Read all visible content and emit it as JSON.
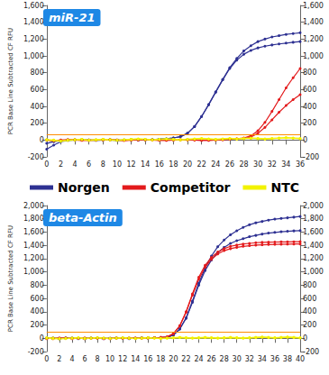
{
  "chart_data": [
    {
      "type": "line",
      "title": "miR-21",
      "y_label": "PCR Base Line Subtracted CF RFU",
      "x": [
        0,
        1,
        2,
        3,
        4,
        5,
        6,
        7,
        8,
        9,
        10,
        11,
        12,
        13,
        14,
        15,
        16,
        17,
        18,
        19,
        20,
        21,
        22,
        23,
        24,
        25,
        26,
        27,
        28,
        29,
        30,
        31,
        32,
        33,
        34,
        35,
        36
      ],
      "xlim": [
        0,
        36
      ],
      "xticks": [
        0,
        2,
        4,
        6,
        8,
        10,
        12,
        14,
        16,
        18,
        20,
        22,
        24,
        26,
        28,
        30,
        32,
        34,
        36
      ],
      "ylim": [
        -200,
        1600
      ],
      "yticks": [
        -200,
        0,
        200,
        400,
        600,
        800,
        1000,
        1200,
        1400,
        1600
      ],
      "threshold": 60,
      "grid": false,
      "legend": "bottom",
      "series": [
        {
          "name": "Norgen",
          "color": "#2e3192",
          "marker": "circle",
          "values": [
            -110,
            -60,
            -20,
            -5,
            0,
            5,
            0,
            -5,
            0,
            5,
            0,
            0,
            5,
            0,
            5,
            5,
            10,
            15,
            25,
            40,
            80,
            160,
            280,
            420,
            570,
            720,
            860,
            970,
            1060,
            1120,
            1170,
            1200,
            1225,
            1240,
            1255,
            1265,
            1275
          ]
        },
        {
          "name": "Norgen",
          "color": "#2e3192",
          "marker": "circle",
          "values": [
            -40,
            -20,
            -10,
            0,
            0,
            5,
            0,
            0,
            5,
            0,
            -5,
            0,
            5,
            0,
            0,
            5,
            10,
            15,
            25,
            40,
            80,
            160,
            280,
            420,
            570,
            715,
            850,
            950,
            1020,
            1065,
            1095,
            1115,
            1130,
            1142,
            1152,
            1162,
            1170
          ]
        },
        {
          "name": "Competitor",
          "color": "#e31a1c",
          "marker": "circle",
          "values": [
            0,
            -10,
            -5,
            0,
            5,
            0,
            -5,
            0,
            0,
            5,
            0,
            -5,
            0,
            0,
            5,
            0,
            0,
            -5,
            0,
            0,
            5,
            0,
            0,
            -5,
            0,
            5,
            10,
            15,
            25,
            50,
            110,
            210,
            340,
            480,
            620,
            740,
            850
          ]
        },
        {
          "name": "Competitor",
          "color": "#e31a1c",
          "marker": "circle",
          "values": [
            0,
            -5,
            0,
            5,
            0,
            -5,
            0,
            0,
            5,
            0,
            0,
            -5,
            0,
            5,
            0,
            0,
            -5,
            0,
            0,
            5,
            0,
            0,
            -5,
            0,
            0,
            5,
            10,
            15,
            20,
            35,
            80,
            150,
            240,
            330,
            410,
            480,
            540
          ]
        },
        {
          "name": "NTC",
          "color": "#f2f200",
          "marker": "circle",
          "values": [
            5,
            0,
            -10,
            0,
            5,
            10,
            0,
            5,
            10,
            5,
            0,
            5,
            10,
            15,
            10,
            5,
            10,
            15,
            10,
            5,
            10,
            15,
            20,
            15,
            10,
            15,
            20,
            15,
            20,
            25,
            20,
            15,
            20,
            25,
            30,
            25,
            20
          ]
        },
        {
          "name": "NTC",
          "color": "#f2f200",
          "marker": "circle",
          "values": [
            0,
            -5,
            -15,
            -5,
            0,
            5,
            -5,
            0,
            5,
            0,
            -5,
            0,
            5,
            10,
            5,
            0,
            5,
            10,
            5,
            0,
            5,
            10,
            15,
            10,
            5,
            10,
            15,
            10,
            15,
            20,
            15,
            10,
            15,
            20,
            25,
            20,
            15
          ]
        }
      ]
    },
    {
      "type": "line",
      "title": "beta-Actin",
      "y_label": "PCR Base Line Subtracted CF RFU",
      "x": [
        0,
        1,
        2,
        3,
        4,
        5,
        6,
        7,
        8,
        9,
        10,
        11,
        12,
        13,
        14,
        15,
        16,
        17,
        18,
        19,
        20,
        21,
        22,
        23,
        24,
        25,
        26,
        27,
        28,
        29,
        30,
        31,
        32,
        33,
        34,
        35,
        36,
        37,
        38,
        39,
        40
      ],
      "xlim": [
        0,
        40
      ],
      "xticks": [
        0,
        2,
        4,
        6,
        8,
        10,
        12,
        14,
        16,
        18,
        20,
        22,
        24,
        26,
        28,
        30,
        32,
        34,
        36,
        38,
        40
      ],
      "ylim": [
        -200,
        2000
      ],
      "yticks": [
        -200,
        0,
        200,
        400,
        600,
        800,
        1000,
        1200,
        1400,
        1600,
        1800,
        2000
      ],
      "threshold": 100,
      "grid": false,
      "series": [
        {
          "name": "Norgen",
          "color": "#2e3192",
          "marker": "circle",
          "values": [
            0,
            5,
            -5,
            0,
            5,
            0,
            -5,
            0,
            5,
            0,
            0,
            5,
            0,
            -5,
            0,
            5,
            5,
            10,
            10,
            15,
            50,
            140,
            310,
            560,
            830,
            1060,
            1240,
            1380,
            1480,
            1560,
            1620,
            1670,
            1710,
            1740,
            1760,
            1780,
            1795,
            1805,
            1815,
            1825,
            1835
          ]
        },
        {
          "name": "Norgen",
          "color": "#2e3192",
          "marker": "circle",
          "values": [
            5,
            0,
            -5,
            5,
            0,
            -5,
            0,
            5,
            0,
            -5,
            0,
            0,
            5,
            0,
            0,
            5,
            5,
            10,
            10,
            15,
            50,
            140,
            300,
            540,
            800,
            1020,
            1180,
            1290,
            1370,
            1430,
            1470,
            1500,
            1530,
            1550,
            1570,
            1585,
            1595,
            1605,
            1612,
            1618,
            1622
          ]
        },
        {
          "name": "Competitor",
          "color": "#e31a1c",
          "marker": "circle",
          "values": [
            0,
            -5,
            0,
            5,
            0,
            0,
            -5,
            0,
            5,
            0,
            -5,
            0,
            0,
            5,
            0,
            5,
            5,
            10,
            12,
            20,
            70,
            190,
            400,
            670,
            920,
            1100,
            1220,
            1300,
            1350,
            1385,
            1405,
            1420,
            1430,
            1440,
            1445,
            1448,
            1450,
            1452,
            1453,
            1454,
            1455
          ]
        },
        {
          "name": "Competitor",
          "color": "#e31a1c",
          "marker": "circle",
          "values": [
            -5,
            0,
            5,
            0,
            -5,
            0,
            5,
            0,
            0,
            -5,
            0,
            5,
            0,
            0,
            5,
            0,
            5,
            8,
            12,
            20,
            70,
            185,
            390,
            650,
            890,
            1070,
            1190,
            1270,
            1320,
            1350,
            1370,
            1385,
            1395,
            1403,
            1408,
            1412,
            1415,
            1417,
            1418,
            1420,
            1421
          ]
        },
        {
          "name": "NTC",
          "color": "#f2f200",
          "marker": "circle",
          "values": [
            10,
            5,
            -5,
            0,
            5,
            10,
            0,
            5,
            10,
            5,
            0,
            5,
            10,
            5,
            0,
            5,
            10,
            5,
            0,
            5,
            10,
            15,
            10,
            5,
            10,
            15,
            10,
            5,
            10,
            15,
            10,
            5,
            10,
            15,
            20,
            15,
            10,
            15,
            20,
            15,
            10
          ]
        },
        {
          "name": "NTC",
          "color": "#f2f200",
          "marker": "circle",
          "values": [
            0,
            -5,
            -10,
            -5,
            0,
            5,
            -5,
            0,
            5,
            0,
            -5,
            0,
            5,
            0,
            -5,
            0,
            5,
            0,
            -5,
            0,
            5,
            10,
            5,
            0,
            5,
            10,
            5,
            0,
            5,
            10,
            5,
            0,
            5,
            10,
            15,
            10,
            5,
            10,
            15,
            10,
            5
          ]
        }
      ]
    }
  ]
}
